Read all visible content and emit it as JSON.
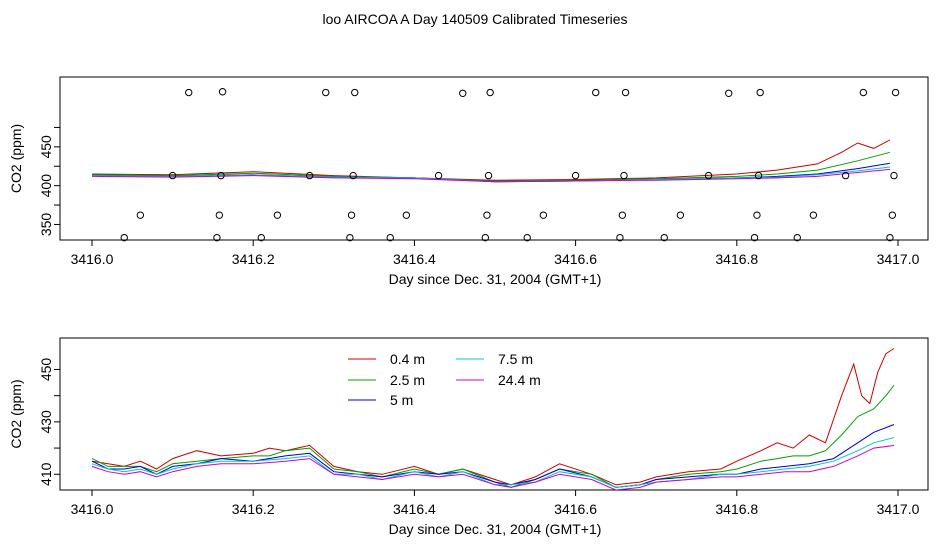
{
  "title": "loo AIRCOA A  Day 140509  Calibrated Timeseries",
  "chart_data": [
    {
      "type": "scatter+line",
      "xlabel": "Day since Dec. 31, 2004 (GMT+1)",
      "ylabel": "CO2 (ppm)",
      "xlim": [
        3416.0,
        3417.0
      ],
      "ylim": [
        330,
        540
      ],
      "xticks": [
        "3416.0",
        "3416.2",
        "3416.4",
        "3416.6",
        "3416.8",
        "3417.0"
      ],
      "yticks": [
        "350",
        "400",
        "450"
      ],
      "scatter": {
        "x": [
          3416.04,
          3416.06,
          3416.1,
          3416.12,
          3416.155,
          3416.158,
          3416.16,
          3416.162,
          3416.21,
          3416.23,
          3416.27,
          3416.29,
          3416.32,
          3416.322,
          3416.324,
          3416.326,
          3416.37,
          3416.39,
          3416.43,
          3416.46,
          3416.488,
          3416.49,
          3416.492,
          3416.494,
          3416.54,
          3416.56,
          3416.6,
          3416.625,
          3416.655,
          3416.658,
          3416.66,
          3416.662,
          3416.71,
          3416.73,
          3416.765,
          3416.79,
          3416.822,
          3416.825,
          3416.827,
          3416.829,
          3416.875,
          3416.895,
          3416.935,
          3416.957,
          3416.99,
          3416.993,
          3416.995,
          3416.997
        ],
        "y": [
          333,
          362,
          413,
          520,
          333,
          362,
          413,
          521,
          333,
          362,
          413,
          520,
          333,
          362,
          413,
          520,
          333,
          362,
          413,
          519,
          333,
          362,
          413,
          520,
          333,
          362,
          413,
          520,
          333,
          362,
          413,
          520,
          333,
          362,
          413,
          519,
          333,
          362,
          413,
          520,
          333,
          362,
          413,
          520,
          333,
          362,
          413,
          520
        ]
      },
      "series": [
        {
          "color": "#cc0000",
          "x": [
            3416.0,
            3416.1,
            3416.2,
            3416.3,
            3416.4,
            3416.5,
            3416.6,
            3416.7,
            3416.8,
            3416.85,
            3416.9,
            3416.93,
            3416.95,
            3416.97,
            3416.99
          ],
          "values": [
            415,
            414,
            418,
            413,
            410,
            407,
            408,
            410,
            415,
            420,
            428,
            443,
            455,
            448,
            459
          ]
        },
        {
          "color": "#00a000",
          "x": [
            3416.0,
            3416.1,
            3416.2,
            3416.3,
            3416.4,
            3416.5,
            3416.6,
            3416.7,
            3416.8,
            3416.85,
            3416.9,
            3416.95,
            3416.99
          ],
          "values": [
            414,
            413,
            416,
            412,
            410,
            406,
            407,
            409,
            412,
            415,
            420,
            432,
            443
          ]
        },
        {
          "color": "#0000cc",
          "x": [
            3416.0,
            3416.1,
            3416.2,
            3416.3,
            3416.4,
            3416.5,
            3416.6,
            3416.7,
            3416.8,
            3416.85,
            3416.9,
            3416.95,
            3416.99
          ],
          "values": [
            413,
            412,
            414,
            411,
            410,
            405,
            406,
            408,
            410,
            412,
            415,
            422,
            429
          ]
        },
        {
          "color": "#00c8c8",
          "x": [
            3416.0,
            3416.1,
            3416.2,
            3416.3,
            3416.4,
            3416.5,
            3416.6,
            3416.7,
            3416.8,
            3416.85,
            3416.9,
            3416.95,
            3416.99
          ],
          "values": [
            413,
            412,
            414,
            411,
            410,
            405,
            406,
            408,
            410,
            411,
            414,
            419,
            424
          ]
        },
        {
          "color": "#cc00cc",
          "x": [
            3416.0,
            3416.1,
            3416.2,
            3416.3,
            3416.4,
            3416.5,
            3416.6,
            3416.7,
            3416.8,
            3416.85,
            3416.9,
            3416.95,
            3416.99
          ],
          "values": [
            412,
            411,
            413,
            410,
            409,
            405,
            406,
            407,
            409,
            410,
            412,
            417,
            421
          ]
        }
      ]
    },
    {
      "type": "line",
      "xlabel": "Day since Dec. 31, 2004 (GMT+1)",
      "ylabel": "CO2 (ppm)",
      "xlim": [
        3416.0,
        3417.0
      ],
      "ylim": [
        404,
        462
      ],
      "xticks": [
        "3416.0",
        "3416.2",
        "3416.4",
        "3416.6",
        "3416.8",
        "3417.0"
      ],
      "yticks": [
        "410",
        "430",
        "450"
      ],
      "legend": {
        "placement": "top-left",
        "entries": [
          {
            "label": "0.4 m",
            "color": "#cc0000"
          },
          {
            "label": "2.5 m",
            "color": "#00a000"
          },
          {
            "label": "5 m",
            "color": "#0000cc"
          },
          {
            "label": "7.5 m",
            "color": "#00c8c8"
          },
          {
            "label": "24.4 m",
            "color": "#cc00cc"
          }
        ]
      },
      "series": [
        {
          "name": "0.4 m",
          "color": "#cc0000",
          "x": [
            3416.0,
            3416.02,
            3416.04,
            3416.06,
            3416.08,
            3416.1,
            3416.13,
            3416.16,
            3416.2,
            3416.22,
            3416.24,
            3416.27,
            3416.3,
            3416.33,
            3416.36,
            3416.4,
            3416.43,
            3416.46,
            3416.5,
            3416.52,
            3416.55,
            3416.58,
            3416.62,
            3416.65,
            3416.68,
            3416.7,
            3416.74,
            3416.78,
            3416.8,
            3416.83,
            3416.85,
            3416.87,
            3416.89,
            3416.91,
            3416.93,
            3416.945,
            3416.955,
            3416.965,
            3416.975,
            3416.985,
            3416.995
          ],
          "values": [
            415,
            414,
            413,
            415,
            412,
            416,
            419,
            417,
            418,
            420,
            419,
            421,
            413,
            411,
            410,
            413,
            410,
            412,
            408,
            406,
            409,
            414,
            410,
            406,
            407,
            409,
            411,
            412,
            415,
            419,
            422,
            420,
            425,
            422,
            440,
            452,
            440,
            437,
            449,
            456,
            458
          ]
        },
        {
          "name": "2.5 m",
          "color": "#00a000",
          "x": [
            3416.0,
            3416.02,
            3416.04,
            3416.06,
            3416.08,
            3416.1,
            3416.13,
            3416.16,
            3416.2,
            3416.22,
            3416.24,
            3416.27,
            3416.3,
            3416.33,
            3416.36,
            3416.4,
            3416.43,
            3416.46,
            3416.5,
            3416.52,
            3416.55,
            3416.58,
            3416.62,
            3416.65,
            3416.68,
            3416.7,
            3416.74,
            3416.78,
            3416.8,
            3416.83,
            3416.85,
            3416.87,
            3416.89,
            3416.91,
            3416.93,
            3416.95,
            3416.97,
            3416.985,
            3416.995
          ],
          "values": [
            416,
            413,
            413,
            413,
            411,
            414,
            415,
            416,
            417,
            417,
            419,
            420,
            412,
            411,
            409,
            412,
            410,
            412,
            407,
            405,
            408,
            412,
            410,
            405,
            406,
            408,
            410,
            411,
            412,
            415,
            416,
            417,
            417,
            419,
            425,
            432,
            435,
            440,
            444
          ]
        },
        {
          "name": "5 m",
          "color": "#0000cc",
          "x": [
            3416.0,
            3416.02,
            3416.04,
            3416.06,
            3416.08,
            3416.1,
            3416.13,
            3416.16,
            3416.2,
            3416.24,
            3416.27,
            3416.3,
            3416.33,
            3416.36,
            3416.4,
            3416.43,
            3416.46,
            3416.5,
            3416.52,
            3416.55,
            3416.58,
            3416.62,
            3416.65,
            3416.68,
            3416.7,
            3416.74,
            3416.78,
            3416.8,
            3416.83,
            3416.86,
            3416.89,
            3416.92,
            3416.95,
            3416.97,
            3416.995
          ],
          "values": [
            415,
            412,
            412,
            413,
            410,
            413,
            414,
            416,
            415,
            417,
            418,
            411,
            410,
            409,
            411,
            410,
            411,
            407,
            406,
            408,
            412,
            409,
            405,
            406,
            408,
            409,
            410,
            410,
            412,
            413,
            414,
            416,
            422,
            426,
            429
          ]
        },
        {
          "name": "7.5 m",
          "color": "#00c8c8",
          "x": [
            3416.0,
            3416.02,
            3416.04,
            3416.06,
            3416.08,
            3416.1,
            3416.13,
            3416.16,
            3416.2,
            3416.24,
            3416.27,
            3416.3,
            3416.33,
            3416.36,
            3416.4,
            3416.43,
            3416.46,
            3416.5,
            3416.52,
            3416.55,
            3416.58,
            3416.62,
            3416.65,
            3416.68,
            3416.7,
            3416.74,
            3416.78,
            3416.8,
            3416.83,
            3416.86,
            3416.89,
            3416.92,
            3416.95,
            3416.97,
            3416.995
          ],
          "values": [
            414,
            412,
            411,
            412,
            410,
            412,
            414,
            415,
            415,
            416,
            417,
            410,
            410,
            408,
            411,
            409,
            411,
            406,
            406,
            407,
            411,
            409,
            405,
            406,
            407,
            408,
            410,
            410,
            411,
            412,
            413,
            415,
            419,
            422,
            424
          ]
        },
        {
          "name": "24.4 m",
          "color": "#cc00cc",
          "x": [
            3416.0,
            3416.02,
            3416.04,
            3416.06,
            3416.08,
            3416.1,
            3416.13,
            3416.16,
            3416.2,
            3416.24,
            3416.27,
            3416.3,
            3416.33,
            3416.36,
            3416.4,
            3416.43,
            3416.46,
            3416.5,
            3416.52,
            3416.55,
            3416.58,
            3416.62,
            3416.65,
            3416.68,
            3416.7,
            3416.74,
            3416.78,
            3416.8,
            3416.83,
            3416.86,
            3416.89,
            3416.92,
            3416.95,
            3416.97,
            3416.995
          ],
          "values": [
            413,
            411,
            410,
            411,
            409,
            411,
            413,
            414,
            414,
            415,
            416,
            410,
            409,
            408,
            410,
            409,
            410,
            406,
            405,
            407,
            410,
            408,
            404,
            405,
            407,
            408,
            409,
            409,
            410,
            411,
            411,
            413,
            417,
            420,
            421
          ]
        }
      ]
    }
  ]
}
